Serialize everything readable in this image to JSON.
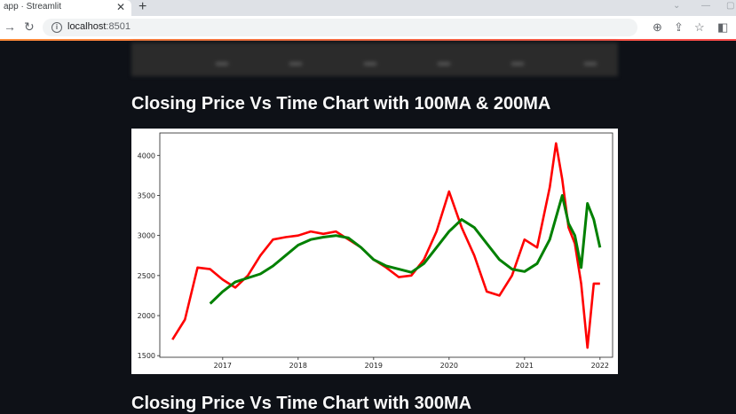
{
  "browser": {
    "tab_title": "app · Streamlit",
    "tab_close": "✕",
    "new_tab": "+",
    "url_host": "localhost",
    "url_port": ":8501"
  },
  "headings": {
    "chart_title": "Closing Price Vs Time Chart with 100MA & 200MA",
    "next_title": "Closing Price Vs Time Chart with 300MA"
  },
  "chart_data": {
    "type": "line",
    "xlabel": "",
    "ylabel": "",
    "xlim": [
      "2016-03",
      "2022-03"
    ],
    "ylim": [
      1480,
      4280
    ],
    "x_ticks": [
      "2017",
      "2018",
      "2019",
      "2020",
      "2021",
      "2022"
    ],
    "y_ticks": [
      1500,
      2000,
      2500,
      3000,
      3500,
      4000
    ],
    "grid": false,
    "series": [
      {
        "color": "#ff0000",
        "x": [
          "2016-05",
          "2016-07",
          "2016-09",
          "2016-11",
          "2017-01",
          "2017-03",
          "2017-05",
          "2017-07",
          "2017-09",
          "2017-11",
          "2018-01",
          "2018-03",
          "2018-05",
          "2018-07",
          "2018-09",
          "2018-11",
          "2019-01",
          "2019-03",
          "2019-05",
          "2019-07",
          "2019-09",
          "2019-11",
          "2020-01",
          "2020-03",
          "2020-05",
          "2020-07",
          "2020-09",
          "2020-11",
          "2021-01",
          "2021-03",
          "2021-05",
          "2021-06",
          "2021-07",
          "2021-08",
          "2021-09",
          "2021-10",
          "2021-11",
          "2021-12",
          "2022-01"
        ],
        "values": [
          1700,
          1950,
          2600,
          2580,
          2450,
          2350,
          2500,
          2750,
          2950,
          2980,
          3000,
          3050,
          3020,
          3050,
          2950,
          2850,
          2700,
          2600,
          2480,
          2500,
          2700,
          3050,
          3550,
          3100,
          2750,
          2300,
          2250,
          2500,
          2950,
          2850,
          3600,
          4150,
          3700,
          3100,
          2900,
          2400,
          1600,
          2400,
          2400
        ]
      },
      {
        "color": "#008000",
        "x": [
          "2016-11",
          "2017-01",
          "2017-03",
          "2017-05",
          "2017-07",
          "2017-09",
          "2017-11",
          "2018-01",
          "2018-03",
          "2018-05",
          "2018-07",
          "2018-09",
          "2018-11",
          "2019-01",
          "2019-03",
          "2019-05",
          "2019-07",
          "2019-09",
          "2019-11",
          "2020-01",
          "2020-03",
          "2020-05",
          "2020-07",
          "2020-09",
          "2020-11",
          "2021-01",
          "2021-03",
          "2021-05",
          "2021-07",
          "2021-08",
          "2021-09",
          "2021-10",
          "2021-11",
          "2021-12",
          "2022-01"
        ],
        "values": [
          2150,
          2300,
          2420,
          2470,
          2520,
          2620,
          2750,
          2880,
          2950,
          2980,
          3000,
          2970,
          2850,
          2700,
          2620,
          2580,
          2540,
          2650,
          2850,
          3050,
          3200,
          3100,
          2900,
          2700,
          2580,
          2550,
          2650,
          2950,
          3500,
          3150,
          3000,
          2600,
          3400,
          3200,
          2850
        ]
      }
    ]
  }
}
